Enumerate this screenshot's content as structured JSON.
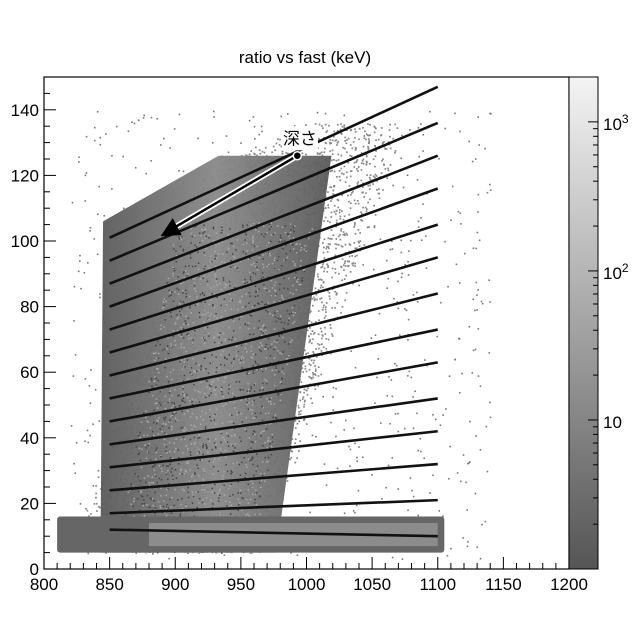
{
  "chart_data": {
    "type": "heatmap",
    "title": "ratio vs fast (keV)",
    "xlabel": "",
    "ylabel": "",
    "xlim": [
      800,
      1200
    ],
    "ylim": [
      0,
      150
    ],
    "x_ticks": [
      800,
      850,
      900,
      950,
      1000,
      1050,
      1100,
      1150,
      1200
    ],
    "x_tick_labels": [
      "800",
      "850",
      "900",
      "950",
      "1000",
      "1050",
      "1100",
      "1150",
      "1200"
    ],
    "y_ticks": [
      0,
      20,
      40,
      60,
      80,
      100,
      120,
      140
    ],
    "y_tick_labels": [
      "0",
      "20",
      "40",
      "60",
      "80",
      "100",
      "120",
      "140"
    ],
    "colorbar": {
      "scale": "log",
      "range": [
        1,
        2000
      ],
      "ticks": [
        {
          "value": 10,
          "label": "10"
        },
        {
          "value": 100,
          "label": "10",
          "sup": "2"
        },
        {
          "value": 1000,
          "label": "10",
          "sup": "3"
        }
      ],
      "colors": [
        "#555555",
        "#f4f4f4"
      ]
    },
    "dense_region": {
      "x_center": [
        895,
        995
      ],
      "x_halfwidth": 52,
      "y_top_left": 106,
      "y_top_right": 126,
      "y_bottom": 5
    },
    "base_band": {
      "x": [
        810,
        1105
      ],
      "y": [
        5,
        16
      ]
    },
    "stripe_lines": [
      {
        "x": [
          850,
          1100
        ],
        "y": [
          12,
          10
        ]
      },
      {
        "x": [
          850,
          1100
        ],
        "y": [
          17,
          21
        ]
      },
      {
        "x": [
          850,
          1100
        ],
        "y": [
          24,
          32
        ]
      },
      {
        "x": [
          850,
          1100
        ],
        "y": [
          31,
          42
        ]
      },
      {
        "x": [
          850,
          1100
        ],
        "y": [
          38,
          52
        ]
      },
      {
        "x": [
          850,
          1100
        ],
        "y": [
          45,
          63
        ]
      },
      {
        "x": [
          850,
          1100
        ],
        "y": [
          52,
          73
        ]
      },
      {
        "x": [
          850,
          1100
        ],
        "y": [
          59,
          84
        ]
      },
      {
        "x": [
          850,
          1100
        ],
        "y": [
          66,
          95
        ]
      },
      {
        "x": [
          850,
          1100
        ],
        "y": [
          73,
          105
        ]
      },
      {
        "x": [
          850,
          1100
        ],
        "y": [
          80,
          116
        ]
      },
      {
        "x": [
          850,
          1100
        ],
        "y": [
          87,
          126
        ]
      },
      {
        "x": [
          850,
          1100
        ],
        "y": [
          94,
          136
        ]
      },
      {
        "x": [
          850,
          1100
        ],
        "y": [
          101,
          147
        ]
      }
    ],
    "annotations": [
      {
        "text": "深さ",
        "x": 995,
        "y": 131
      },
      {
        "type": "arrow",
        "from": [
          993,
          126
        ],
        "to": [
          895,
          103
        ]
      }
    ]
  }
}
